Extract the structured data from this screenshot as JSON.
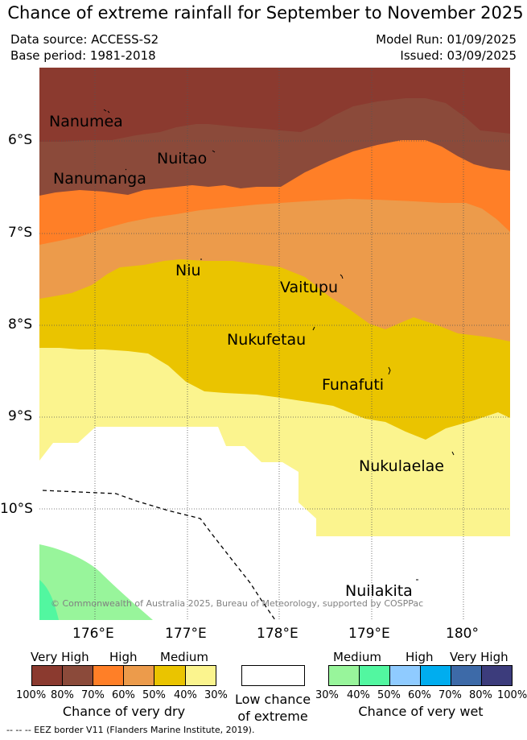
{
  "title": "Chance of extreme rainfall for September to November 2025",
  "data_source": "Data source: ACCESS-S2",
  "base_period": "Base period: 1981-2018",
  "model_run": "Model Run: 01/09/2025",
  "issued": "Issued: 03/09/2025",
  "latitude_labels": [
    "6°S",
    "7°S",
    "8°S",
    "9°S",
    "10°S"
  ],
  "longitude_labels": [
    "176°E",
    "177°E",
    "178°E",
    "179°E",
    "180°"
  ],
  "places": [
    "Nanumea",
    "Nuitao",
    "Nanumanga",
    "Niu",
    "Vaitupu",
    "Nukufetau",
    "Funafuti",
    "Nukulaelae",
    "Nuilakita"
  ],
  "copyright": "© Commonwealth of Australia 2025, Bureau of Meteorology, supported by COSPPac",
  "colors": {
    "dry_very_high_100": "#8b3a2f",
    "dry_very_high_80": "#8b4a3a",
    "dry_high_70": "#ff7f27",
    "dry_high_60": "#ec9b4b",
    "dry_medium_50": "#eac400",
    "dry_medium_40": "#fbf48e",
    "low_chance": "#ffffff",
    "wet_medium_30": "#98f59b",
    "wet_medium_40": "#52f7a0",
    "wet_high_50": "#8fcbff",
    "wet_high_60": "#00adef",
    "wet_very_high_70": "#3d6aa8",
    "wet_very_high_80": "#3c3c7c"
  },
  "legend": {
    "dry": {
      "categories": [
        "Very High",
        "High",
        "Medium"
      ],
      "ticks": [
        "100%",
        "80%",
        "70%",
        "60%",
        "50%",
        "40%",
        "30%"
      ],
      "caption": "Chance of very dry"
    },
    "low": {
      "caption_line1": "Low chance",
      "caption_line2": "of extreme"
    },
    "wet": {
      "categories": [
        "Medium",
        "High",
        "Very High"
      ],
      "ticks": [
        "30%",
        "40%",
        "50%",
        "60%",
        "70%",
        "80%",
        "100%"
      ],
      "caption": "Chance of very wet"
    }
  },
  "footer": "-- -- -- EEZ border V11 (Flanders Marine Institute, 2019)."
}
